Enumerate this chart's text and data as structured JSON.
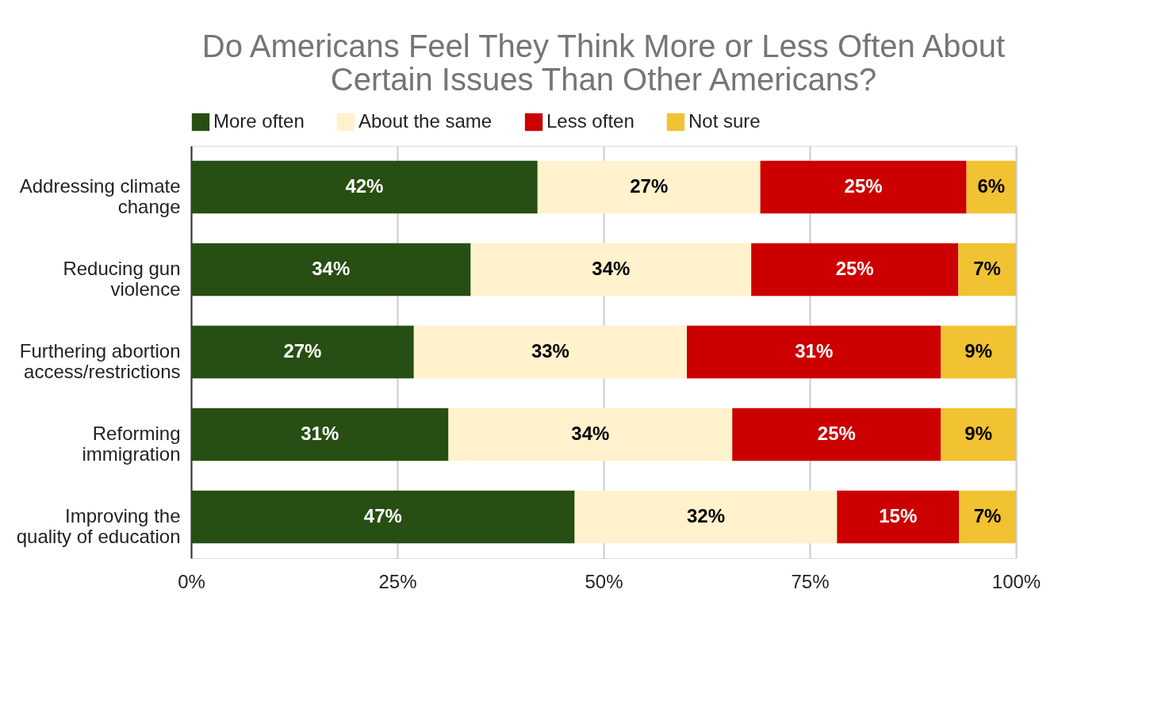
{
  "chart_data": {
    "type": "bar",
    "orientation": "horizontal",
    "stacked": true,
    "title": "Do Americans Feel They Think More or Less Often About Certain Issues Than Other Americans?",
    "categories": [
      "Addressing climate change",
      "Reducing gun violence",
      "Furthering abortion access/restrictions",
      "Reforming immigration",
      "Improving the quality of education"
    ],
    "series": [
      {
        "name": "More often",
        "color": "#274e13",
        "values": [
          42,
          33.9,
          27,
          31.2,
          46.5
        ],
        "value_labels": [
          "42%",
          "34%",
          "27%",
          "31%",
          "47%"
        ]
      },
      {
        "name": "About the same",
        "color": "#fff2cc",
        "values": [
          27,
          34,
          33.1,
          34.4,
          31.8
        ],
        "value_labels": [
          "27%",
          "34%",
          "33%",
          "34%",
          "32%"
        ]
      },
      {
        "name": "Less often",
        "color": "#cc0000",
        "values": [
          25,
          25.1,
          30.8,
          25.3,
          14.8
        ],
        "value_labels": [
          "25%",
          "25%",
          "31%",
          "25%",
          "15%"
        ]
      },
      {
        "name": "Not sure",
        "color": "#f1c232",
        "values": [
          6,
          7,
          9.1,
          9.1,
          6.9
        ],
        "value_labels": [
          "6%",
          "7%",
          "9%",
          "9%",
          "7%"
        ]
      }
    ],
    "xlim": [
      0,
      100
    ],
    "xticks": [
      {
        "value": 0,
        "label": "0%"
      },
      {
        "value": 25,
        "label": "25%"
      },
      {
        "value": 50,
        "label": "50%"
      },
      {
        "value": 75,
        "label": "75%"
      },
      {
        "value": 100,
        "label": "100%"
      }
    ],
    "grid": "x",
    "legend": "top"
  }
}
